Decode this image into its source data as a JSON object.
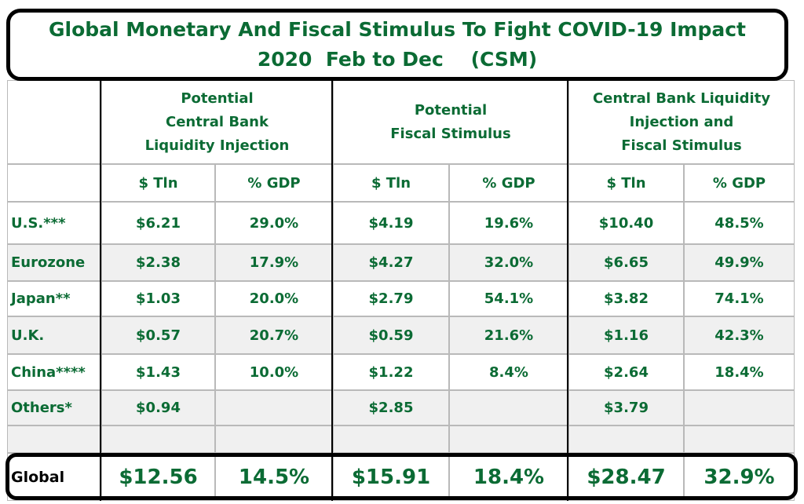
{
  "title": {
    "line1": "Global Monetary And Fiscal Stimulus To Fight COVID-19 Impact",
    "line2": "2020  Feb to Dec    (CSM)"
  },
  "chart_data": {
    "type": "table",
    "groups": [
      {
        "lines": [
          "Potential",
          "Central Bank",
          "Liquidity Injection"
        ]
      },
      {
        "lines": [
          "Potential",
          "Fiscal Stimulus"
        ]
      },
      {
        "lines": [
          "Central Bank Liquidity",
          "Injection  and",
          "Fiscal Stimulus"
        ]
      }
    ],
    "subheaders": [
      "$ Tln",
      "% GDP",
      "$ Tln",
      "% GDP",
      "$ Tln",
      "% GDP"
    ],
    "rows": [
      {
        "label": "U.S.***",
        "values": [
          "$6.21",
          "29.0%",
          "$4.19",
          "19.6%",
          "$10.40",
          "48.5%"
        ]
      },
      {
        "label": "Eurozone",
        "values": [
          "$2.38",
          "17.9%",
          "$4.27",
          "32.0%",
          "$6.65",
          "49.9%"
        ]
      },
      {
        "label": "Japan**",
        "values": [
          "$1.03",
          "20.0%",
          "$2.79",
          "54.1%",
          "$3.82",
          "74.1%"
        ]
      },
      {
        "label": "U.K.",
        "values": [
          "$0.57",
          "20.7%",
          "$0.59",
          "21.6%",
          "$1.16",
          "42.3%"
        ]
      },
      {
        "label": "China****",
        "values": [
          "$1.43",
          "10.0%",
          "$1.22",
          "8.4%",
          "$2.64",
          "18.4%"
        ]
      },
      {
        "label": "Others*",
        "values": [
          "$0.94",
          "",
          "$2.85",
          "",
          "$3.79",
          ""
        ]
      }
    ],
    "total": {
      "label": "Global",
      "values": [
        "$12.56",
        "14.5%",
        "$15.91",
        "18.4%",
        "$28.47",
        "32.9%"
      ]
    }
  }
}
